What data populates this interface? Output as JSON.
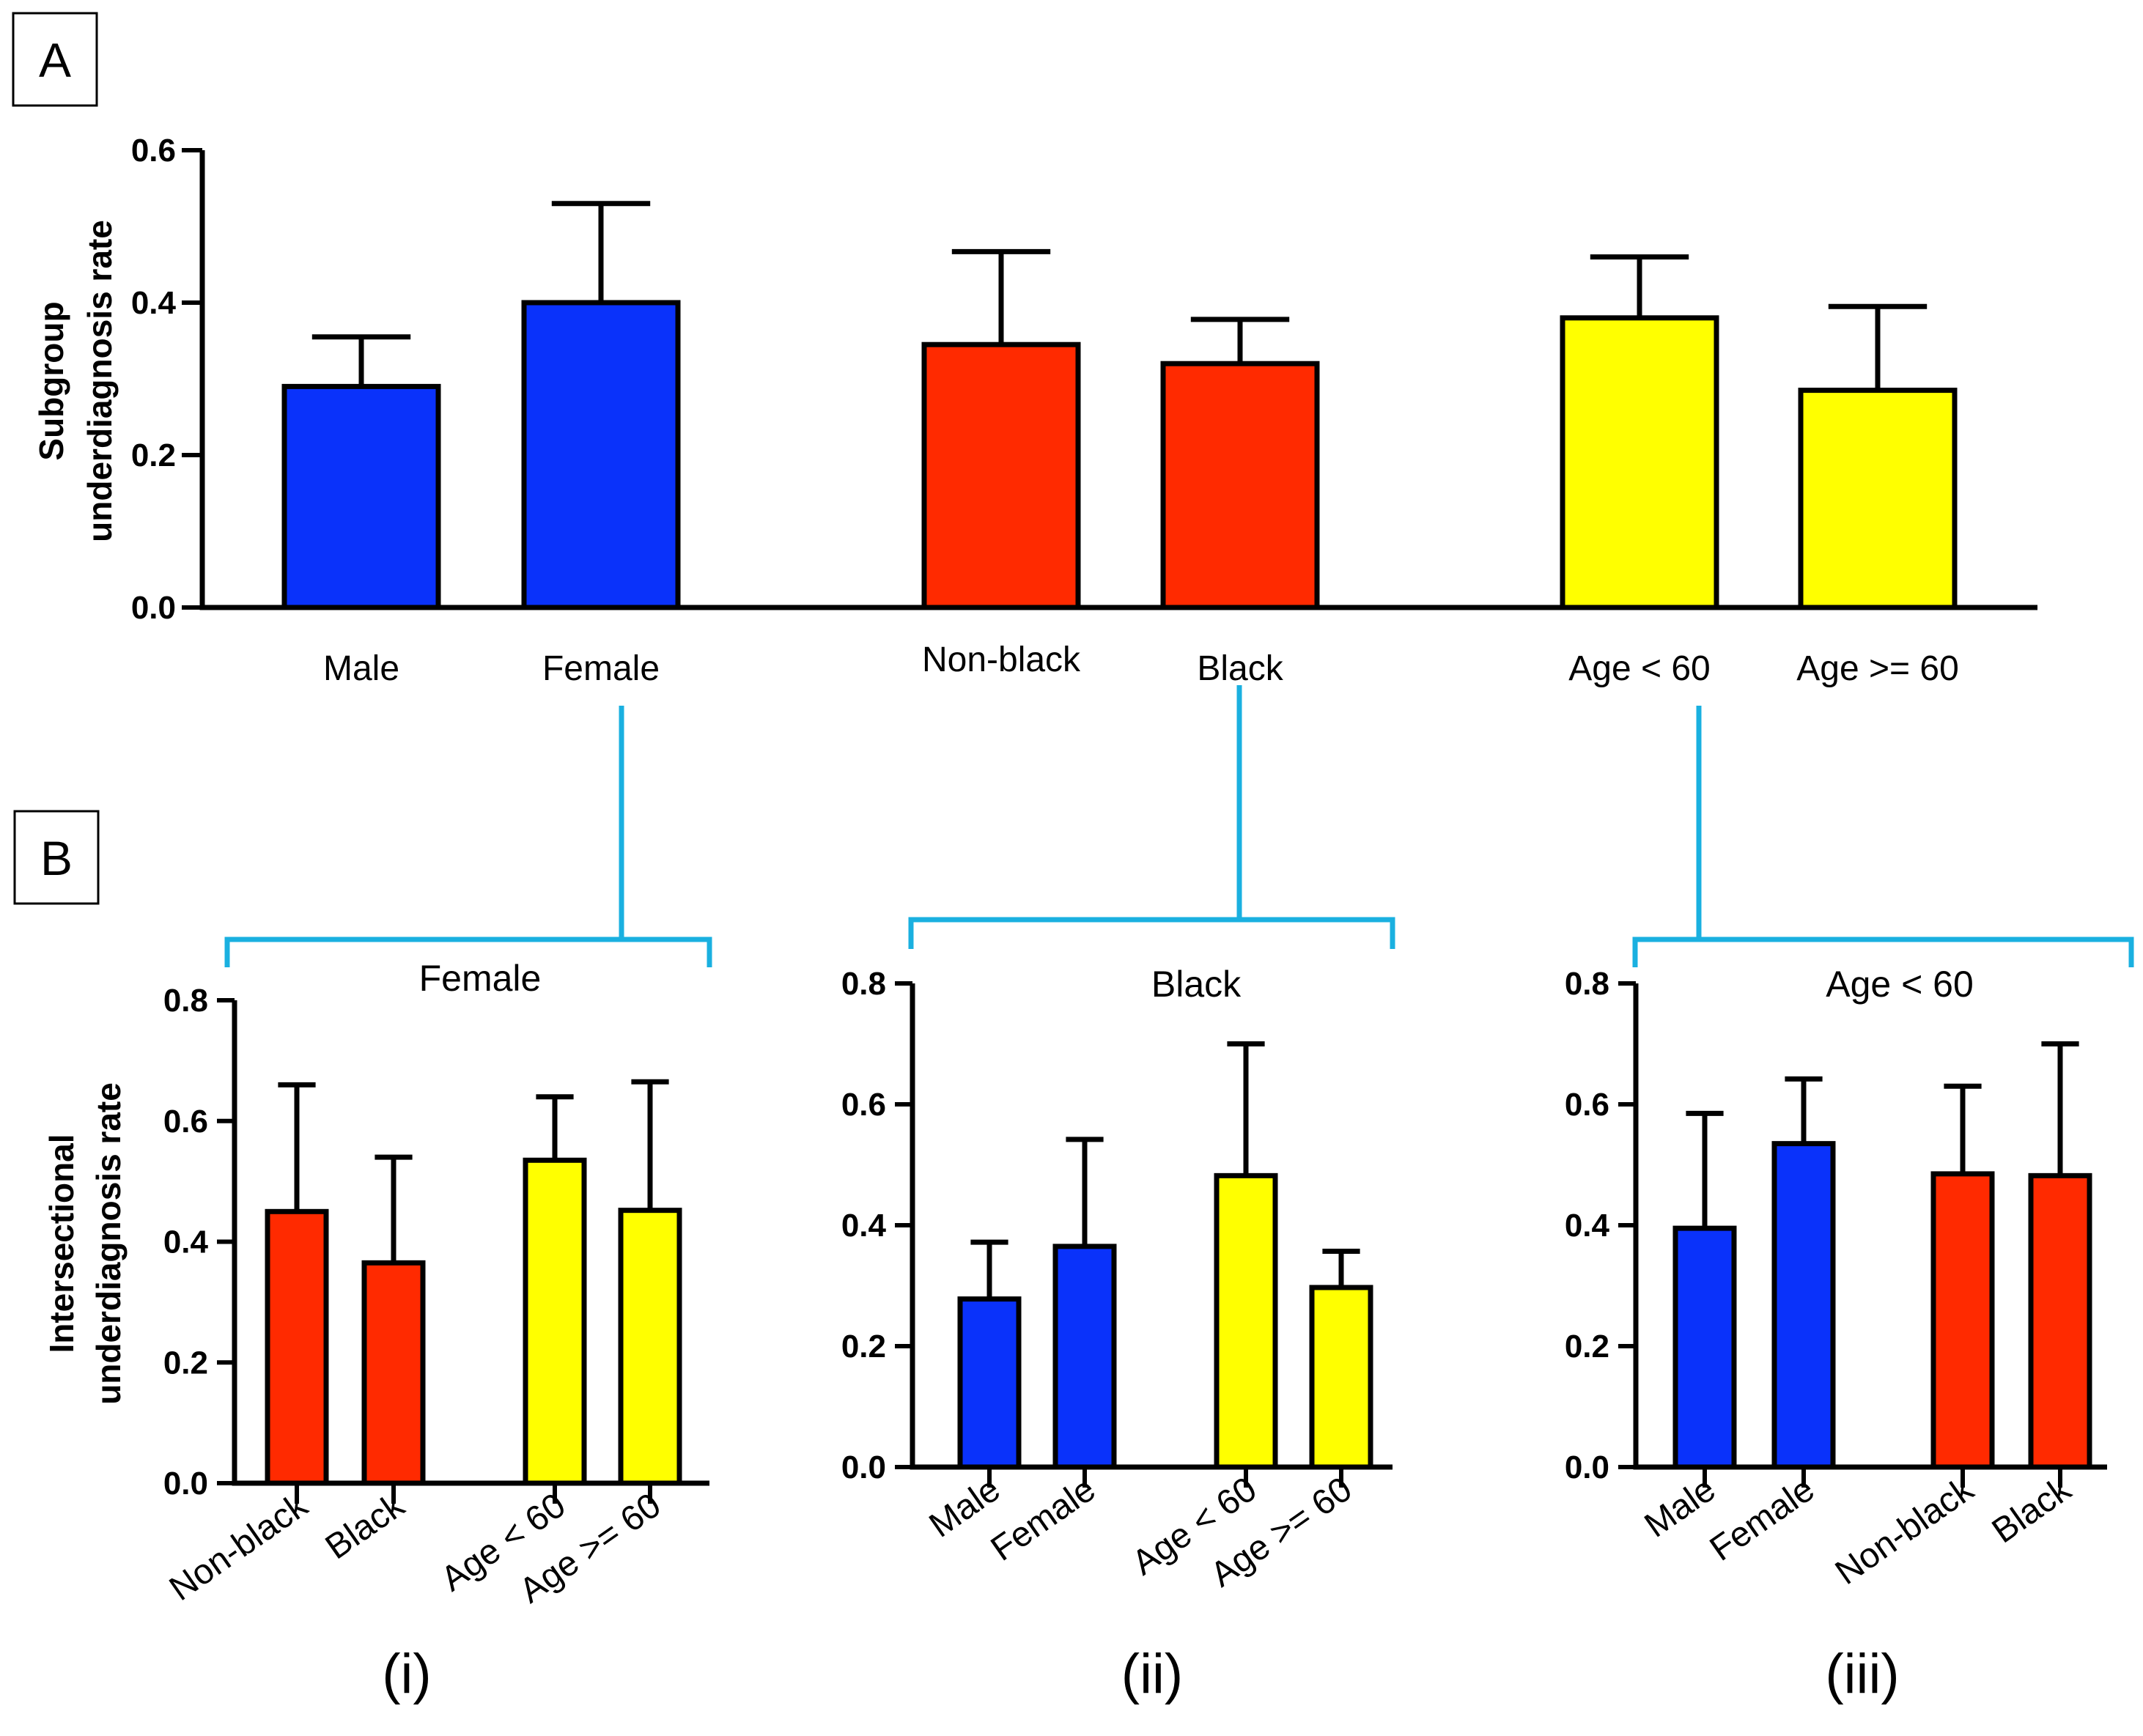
{
  "colors": {
    "sex": "#0a32fa",
    "race": "#ff2a00",
    "age": "#ffff00",
    "bracket": "#1ab0e0"
  },
  "panel_a": {
    "letter": "A"
  },
  "panel_b": {
    "letter": "B"
  },
  "chart_data": [
    {
      "id": "A",
      "type": "bar",
      "title": "",
      "xlabel": "",
      "ylabel_lines": [
        "Subgroup",
        "underdiagnosis rate"
      ],
      "ylim": [
        0,
        0.6
      ],
      "yticks": [
        "0.0",
        "0.2",
        "0.4",
        "0.6"
      ],
      "categories": [
        "Male",
        "Female",
        "Non-black",
        "Black",
        "Age < 60",
        "Age >= 60"
      ],
      "groups": [
        "sex",
        "sex",
        "race",
        "race",
        "age",
        "age"
      ],
      "values": [
        0.29,
        0.4,
        0.345,
        0.32,
        0.38,
        0.285
      ],
      "error_upper": [
        0.355,
        0.53,
        0.467,
        0.378,
        0.46,
        0.395
      ]
    },
    {
      "id": "B-i",
      "type": "bar",
      "title": "Female",
      "panel_label": "(i)",
      "ylabel_lines": [
        "Intersectional",
        "underdiagnosis rate"
      ],
      "ylim": [
        0,
        0.8
      ],
      "yticks": [
        "0.0",
        "0.2",
        "0.4",
        "0.6",
        "0.8"
      ],
      "categories": [
        "Non-black",
        "Black",
        "Age < 60",
        "Age >= 60"
      ],
      "groups": [
        "race",
        "race",
        "age",
        "age"
      ],
      "values": [
        0.45,
        0.365,
        0.535,
        0.452
      ],
      "error_upper": [
        0.66,
        0.54,
        0.64,
        0.665
      ]
    },
    {
      "id": "B-ii",
      "type": "bar",
      "title": "Black",
      "panel_label": "(ii)",
      "ylim": [
        0,
        0.8
      ],
      "yticks": [
        "0.0",
        "0.2",
        "0.4",
        "0.6",
        "0.8"
      ],
      "categories": [
        "Male",
        "Female",
        "Age < 60",
        "Age >= 60"
      ],
      "groups": [
        "sex",
        "sex",
        "age",
        "age"
      ],
      "values": [
        0.278,
        0.365,
        0.482,
        0.297
      ],
      "error_upper": [
        0.372,
        0.542,
        0.7,
        0.357
      ]
    },
    {
      "id": "B-iii",
      "type": "bar",
      "title": "Age < 60",
      "panel_label": "(iii)",
      "ylim": [
        0,
        0.8
      ],
      "yticks": [
        "0.0",
        "0.2",
        "0.4",
        "0.6",
        "0.8"
      ],
      "categories": [
        "Male",
        "Female",
        "Non-black",
        "Black"
      ],
      "groups": [
        "sex",
        "sex",
        "race",
        "race"
      ],
      "values": [
        0.395,
        0.535,
        0.485,
        0.482
      ],
      "error_upper": [
        0.585,
        0.642,
        0.63,
        0.7
      ]
    }
  ]
}
